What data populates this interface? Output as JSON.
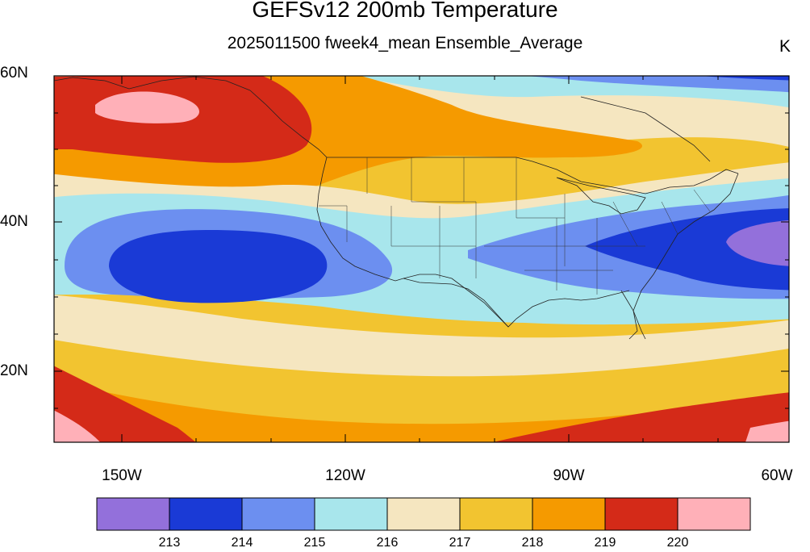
{
  "title": "GEFSv12 200mb Temperature",
  "subtitle": "2025011500 fweek4_mean Ensemble_Average",
  "units": "K",
  "latitude_labels": [
    "60N",
    "40N",
    "20N"
  ],
  "longitude_labels": [
    "150W",
    "120W",
    "90W",
    "60W"
  ],
  "colorbar": {
    "labels": [
      "213",
      "214",
      "215",
      "216",
      "217",
      "218",
      "219",
      "220"
    ],
    "colors": [
      "#9370db",
      "#1a3ad6",
      "#6c8ff0",
      "#a8e6ec",
      "#f5e6c0",
      "#f2c430",
      "#f59a00",
      "#d42a18",
      "#ffb0b8"
    ]
  },
  "map": {
    "projection": "cylindrical equidistant",
    "region": "North America / CONUS with Pacific and Atlantic",
    "features": [
      "coastlines",
      "US state boundaries",
      "Canadian province boundaries"
    ]
  }
}
